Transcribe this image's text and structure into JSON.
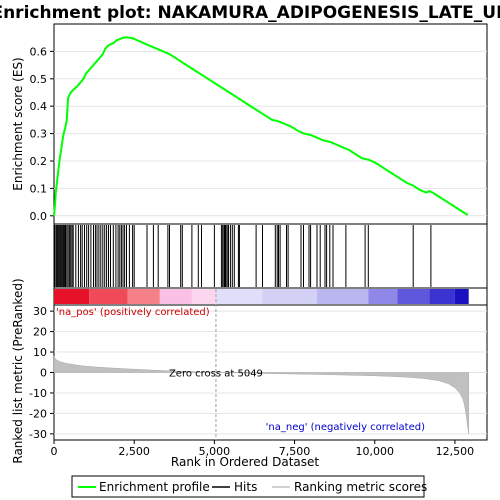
{
  "chart_data": [
    {
      "type": "line",
      "title": "Enrichment plot: NAKAMURA_ADIPOGENESIS_LATE_UP",
      "ylabel": "Enrichment score (ES)",
      "xlim": [
        0,
        13500
      ],
      "ylim": [
        -0.03,
        0.7
      ],
      "yticks": [
        0.0,
        0.1,
        0.2,
        0.3,
        0.4,
        0.5,
        0.6
      ],
      "ytick_labels": [
        "0.0",
        "0.1",
        "0.2",
        "0.3",
        "0.4",
        "0.5",
        "0.6"
      ],
      "series": [
        {
          "color": "#00ff00",
          "x": [
            0,
            30,
            60,
            100,
            140,
            180,
            220,
            260,
            300,
            350,
            400,
            440,
            480,
            520,
            600,
            700,
            780,
            850,
            920,
            1000,
            1080,
            1150,
            1230,
            1300,
            1380,
            1450,
            1520,
            1600,
            1680,
            1750,
            1850,
            1950,
            2050,
            2150,
            2250,
            2350,
            2450,
            2600,
            2800,
            3000,
            3200,
            3400,
            3600,
            3800,
            4000,
            4200,
            4400,
            4600,
            4800,
            5000,
            5200,
            5400,
            5600,
            5800,
            6000,
            6200,
            6400,
            6600,
            6800,
            7000,
            7200,
            7400,
            7600,
            7800,
            8000,
            8200,
            8400,
            8600,
            8800,
            9000,
            9200,
            9400,
            9600,
            9800,
            10000,
            10200,
            10400,
            10600,
            10800,
            11000,
            11200,
            11400,
            11600,
            11700,
            11800,
            12000,
            12200,
            12400,
            12600,
            12800,
            12900
          ],
          "y": [
            0.0,
            0.04,
            0.09,
            0.13,
            0.17,
            0.21,
            0.24,
            0.27,
            0.3,
            0.32,
            0.35,
            0.43,
            0.44,
            0.45,
            0.46,
            0.47,
            0.48,
            0.49,
            0.5,
            0.52,
            0.53,
            0.54,
            0.55,
            0.56,
            0.57,
            0.58,
            0.59,
            0.61,
            0.62,
            0.625,
            0.63,
            0.64,
            0.645,
            0.65,
            0.652,
            0.65,
            0.648,
            0.64,
            0.63,
            0.62,
            0.61,
            0.6,
            0.59,
            0.575,
            0.56,
            0.545,
            0.53,
            0.515,
            0.5,
            0.485,
            0.47,
            0.455,
            0.44,
            0.425,
            0.41,
            0.395,
            0.38,
            0.365,
            0.35,
            0.345,
            0.335,
            0.325,
            0.31,
            0.3,
            0.295,
            0.285,
            0.275,
            0.27,
            0.26,
            0.25,
            0.24,
            0.225,
            0.21,
            0.205,
            0.195,
            0.18,
            0.165,
            0.15,
            0.135,
            0.12,
            0.11,
            0.095,
            0.085,
            0.09,
            0.085,
            0.07,
            0.055,
            0.04,
            0.025,
            0.01,
            0.003
          ]
        }
      ]
    },
    {
      "type": "area",
      "xlabel": "Rank in Ordered Dataset",
      "ylabel": "Ranked list metric (PreRanked)",
      "xlim": [
        0,
        13500
      ],
      "ylim": [
        -33,
        33
      ],
      "yticks": [
        -30,
        -20,
        -10,
        0,
        10,
        20,
        30
      ],
      "ytick_labels": [
        "-30",
        "-20",
        "-10",
        "0",
        "10",
        "20",
        "30"
      ],
      "xticks": [
        0,
        2500,
        5000,
        7500,
        10000,
        12500
      ],
      "xtick_labels": [
        "0",
        "2,500",
        "5,000",
        "7,500",
        "10,000",
        "12,500"
      ],
      "zero_cross": 5049,
      "zero_cross_label": "Zero cross at 5049",
      "pos_label": "'na_pos' (positively correlated)",
      "neg_label": "'na_neg' (negatively correlated)",
      "metric": {
        "x": [
          0,
          50,
          100,
          200,
          400,
          700,
          1000,
          1500,
          2000,
          2500,
          3000,
          3500,
          4000,
          4500,
          5049,
          6000,
          7000,
          8000,
          9000,
          10000,
          10500,
          11000,
          11500,
          12000,
          12300,
          12500,
          12650,
          12750,
          12800,
          12850,
          12900,
          12930
        ],
        "y": [
          8,
          6.5,
          6,
          5.2,
          4.4,
          3.6,
          3.1,
          2.5,
          2.0,
          1.6,
          1.2,
          0.9,
          0.6,
          0.3,
          0.0,
          -0.3,
          -0.6,
          -0.9,
          -1.2,
          -1.6,
          -1.9,
          -2.3,
          -2.9,
          -4.0,
          -5.5,
          -7.5,
          -10,
          -13,
          -16,
          -21,
          -27,
          -30
        ]
      },
      "color_band": [
        {
          "from": 0,
          "to": 1100,
          "color": "#e8112a"
        },
        {
          "from": 1100,
          "to": 2300,
          "color": "#f04a59"
        },
        {
          "from": 2300,
          "to": 3300,
          "color": "#f68088"
        },
        {
          "from": 3300,
          "to": 4300,
          "color": "#fbc0e6"
        },
        {
          "from": 4300,
          "to": 5049,
          "color": "#fcd6ee"
        },
        {
          "from": 5049,
          "to": 6500,
          "color": "#e0def8"
        },
        {
          "from": 6500,
          "to": 8200,
          "color": "#d3d0f6"
        },
        {
          "from": 8200,
          "to": 9800,
          "color": "#bab6f0"
        },
        {
          "from": 9800,
          "to": 10700,
          "color": "#8f88e8"
        },
        {
          "from": 10700,
          "to": 11700,
          "color": "#6058dc"
        },
        {
          "from": 11700,
          "to": 12500,
          "color": "#3b32d2"
        },
        {
          "from": 12500,
          "to": 12930,
          "color": "#1a12c0"
        }
      ],
      "hits": [
        20,
        60,
        90,
        120,
        150,
        180,
        210,
        240,
        270,
        300,
        330,
        360,
        400,
        440,
        480,
        520,
        560,
        600,
        680,
        760,
        830,
        880,
        950,
        1020,
        1080,
        1150,
        1230,
        1290,
        1340,
        1400,
        1460,
        1520,
        1580,
        1640,
        1700,
        1760,
        1850,
        1930,
        2000,
        2050,
        2100,
        2150,
        2200,
        2260,
        2350,
        2450,
        2500,
        2900,
        3100,
        3250,
        3550,
        3600,
        3950,
        4000,
        4300,
        4500,
        4600,
        5000,
        5220,
        5260,
        5300,
        5330,
        5360,
        5400,
        5440,
        5500,
        5560,
        5620,
        5750,
        5780,
        6300,
        6500,
        6900,
        6960,
        7000,
        7050,
        7250,
        7300,
        7700,
        7780,
        7950,
        8000,
        8200,
        8300,
        8450,
        8500,
        8600,
        8700,
        9100,
        9700,
        9800,
        11200,
        11750
      ]
    }
  ],
  "legend": {
    "items": [
      "Enrichment profile",
      "Hits",
      "Ranking metric scores"
    ],
    "colors": [
      "#00ff00",
      "#000000",
      "#c0c0c0"
    ]
  }
}
